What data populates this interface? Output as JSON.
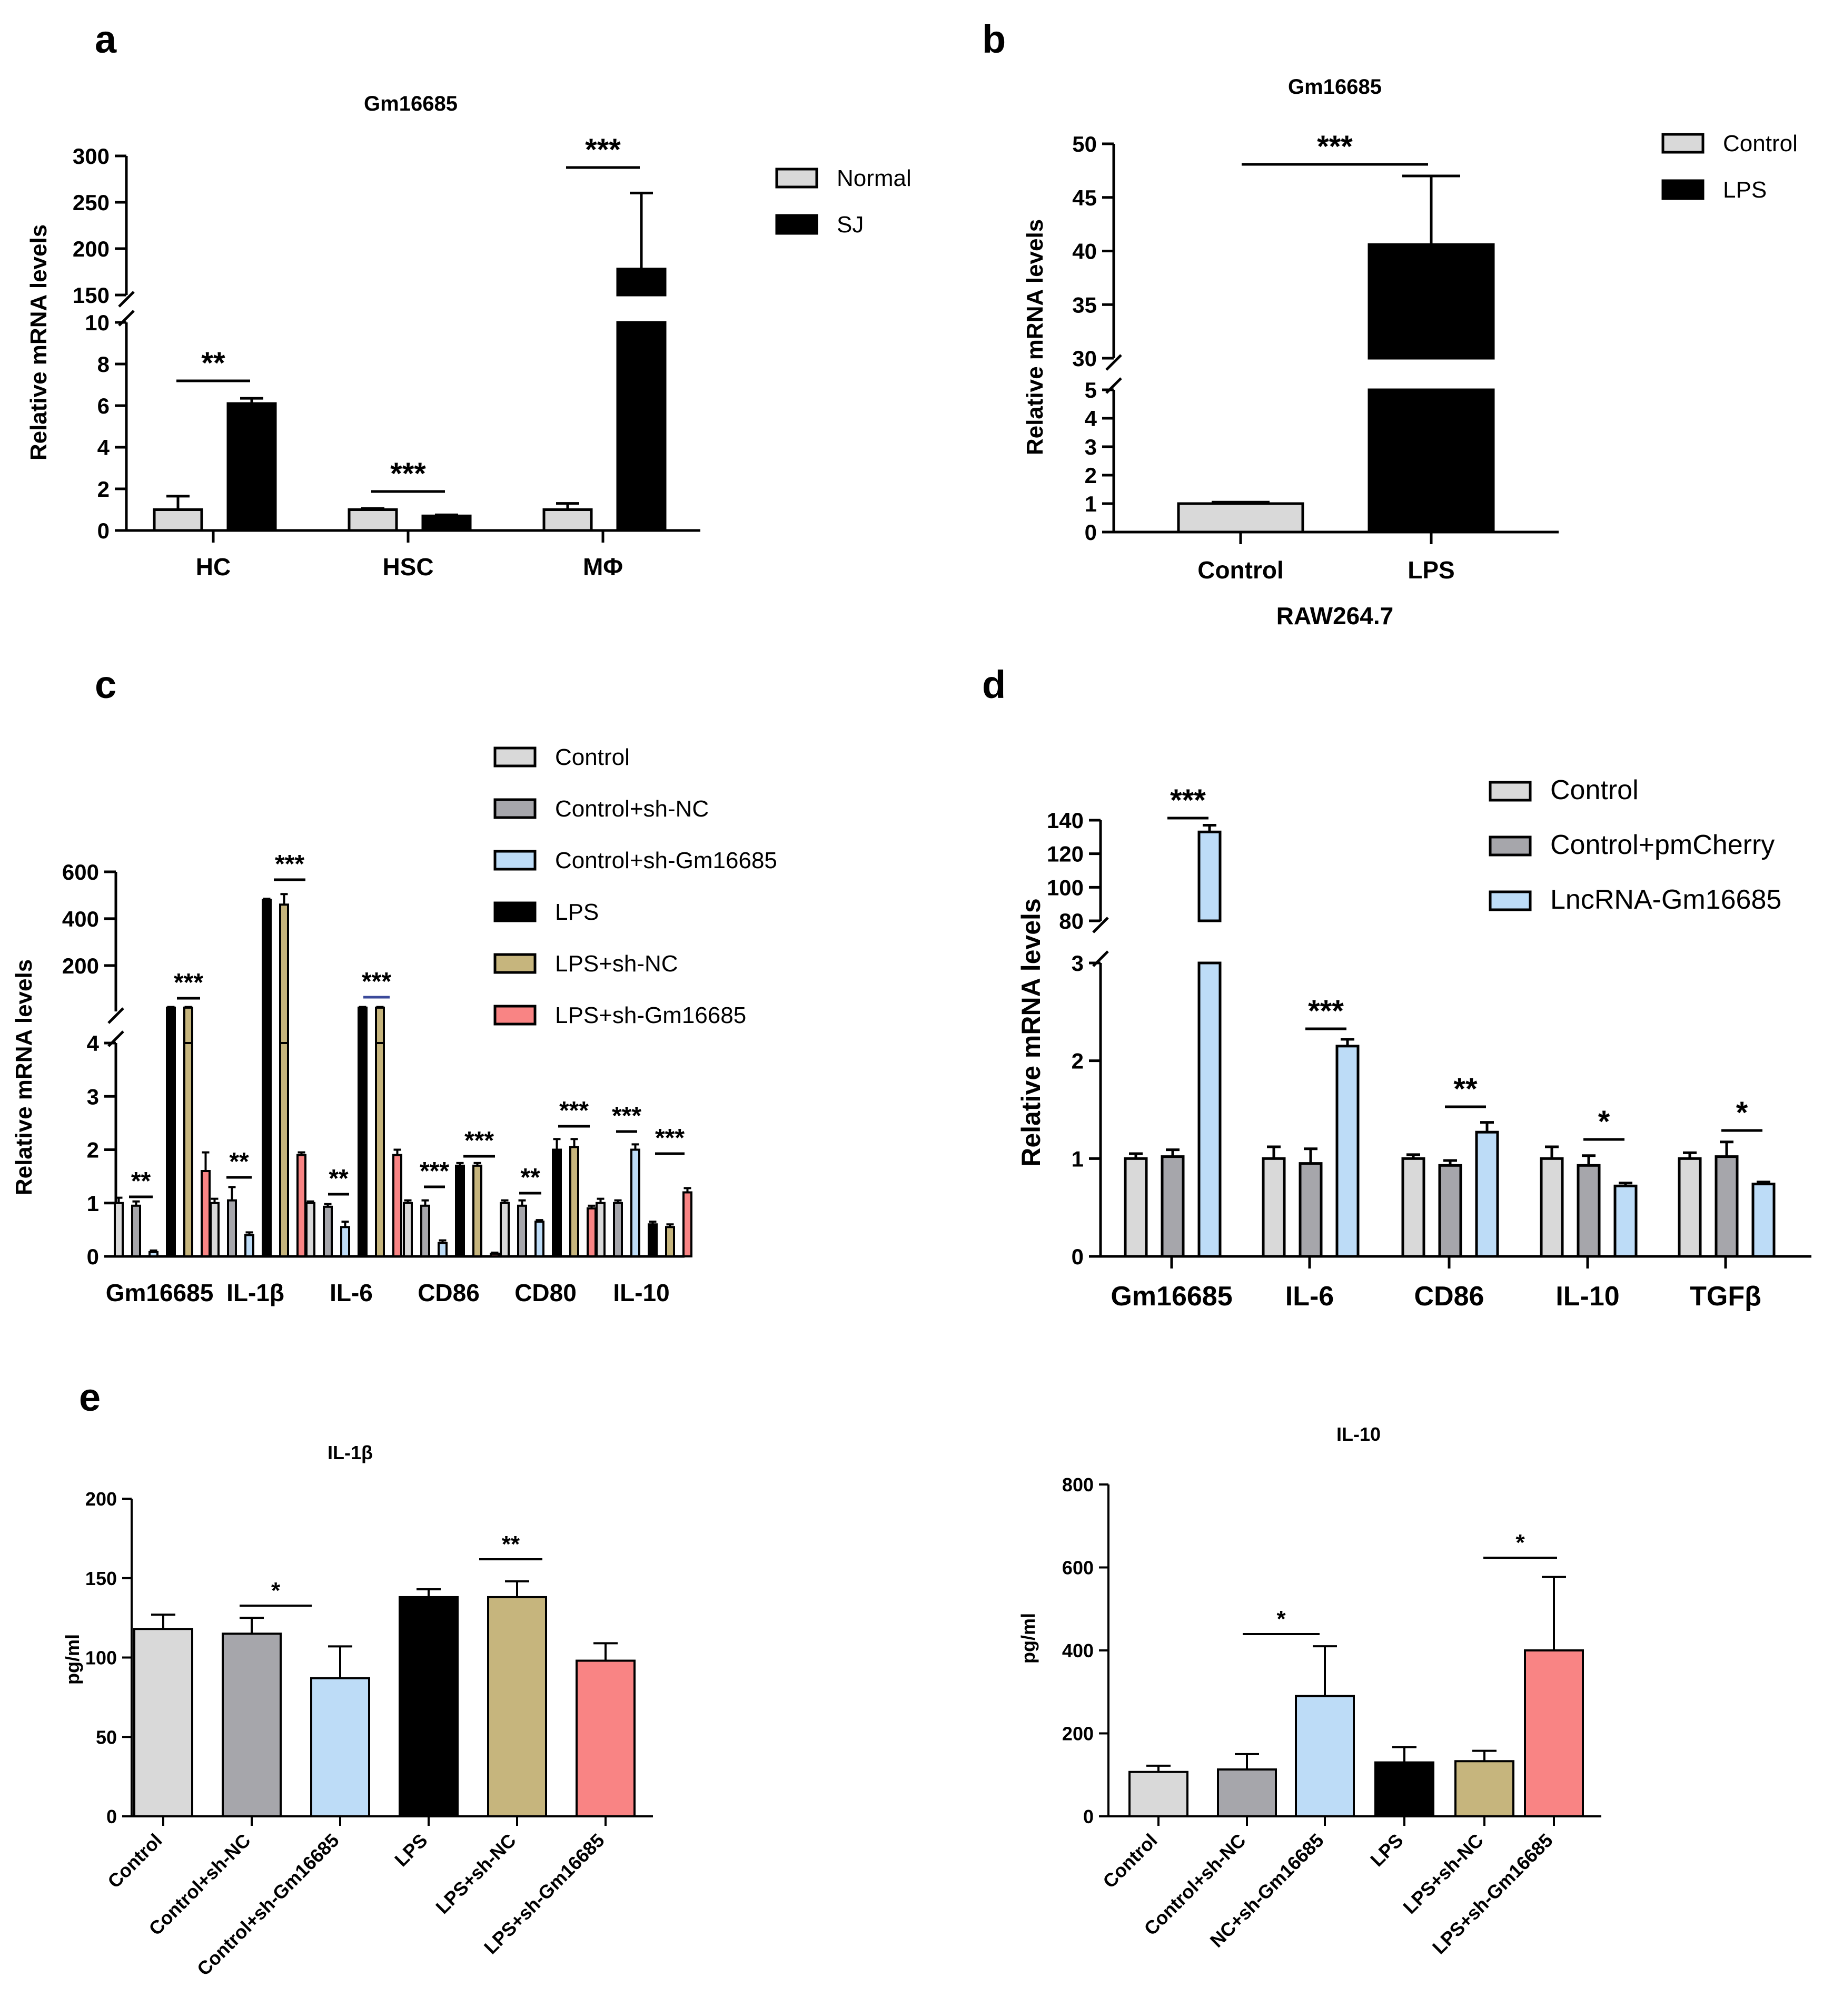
{
  "colors": {
    "Normal": "#d9d9d9",
    "SJ": "#000000",
    "Control": "#d9d9d9",
    "LPS": "#000000",
    "Control+sh-NC": "#a6a6ab",
    "Control+sh-Gm16685": "#bddcf7",
    "LPS+sh-NC": "#c6b57d",
    "LPS+sh-Gm16685": "#f98484",
    "Control+pmCherry": "#a6a6ab",
    "LncRNA-Gm16685": "#bddcf7",
    "NC+sh-Gm16685": "#bddcf7"
  },
  "panels": {
    "a": {
      "label": "a",
      "title": "Gm16685",
      "ylabel": "Relative mRNA levels"
    },
    "b": {
      "label": "b",
      "title": "Gm16685",
      "ylabel": "Relative mRNA levels",
      "xlabel": "RAW264.7"
    },
    "c": {
      "label": "c",
      "ylabel": "Relative mRNA levels"
    },
    "d": {
      "label": "d",
      "ylabel": "Relative mRNA levels"
    },
    "e": {
      "label": "e"
    },
    "e1": {
      "title": "IL-1β",
      "ylabel": "pg/ml"
    },
    "e2": {
      "title": "IL-10",
      "ylabel": "pg/ml"
    }
  },
  "chart_data": [
    {
      "id": "a",
      "type": "bar",
      "title": "Gm16685",
      "ylabel": "Relative mRNA levels",
      "categories": [
        "HC",
        "HSC",
        "MΦ"
      ],
      "series": [
        {
          "name": "Normal",
          "values": [
            1.0,
            1.0,
            1.0
          ],
          "errors": [
            0.65,
            0.05,
            0.3
          ]
        },
        {
          "name": "SJ",
          "values": [
            6.1,
            0.7,
            178
          ],
          "errors": [
            0.25,
            0.05,
            82
          ]
        }
      ],
      "y_segments": [
        {
          "range": [
            0,
            10
          ],
          "ticks": [
            0,
            2,
            4,
            6,
            8,
            10
          ]
        },
        {
          "range": [
            150,
            300
          ],
          "ticks": [
            150,
            200,
            250,
            300
          ]
        }
      ],
      "significance": [
        {
          "category": "HC",
          "label": "**"
        },
        {
          "category": "HSC",
          "label": "***"
        },
        {
          "category": "MΦ",
          "label": "***"
        }
      ]
    },
    {
      "id": "b",
      "type": "bar",
      "title": "Gm16685",
      "ylabel": "Relative mRNA levels",
      "xlabel": "RAW264.7",
      "categories": [
        "Control",
        "LPS"
      ],
      "series": [
        {
          "name": "Relative mRNA",
          "values": [
            1.0,
            40.6
          ],
          "errors": [
            0.05,
            6.4
          ]
        }
      ],
      "legend": [
        "Control",
        "LPS"
      ],
      "y_segments": [
        {
          "range": [
            0,
            5
          ],
          "ticks": [
            0,
            1,
            2,
            3,
            4,
            5
          ]
        },
        {
          "range": [
            30,
            50
          ],
          "ticks": [
            30,
            35,
            40,
            45,
            50
          ]
        }
      ],
      "significance": [
        {
          "between": [
            "Control",
            "LPS"
          ],
          "label": "***"
        }
      ]
    },
    {
      "id": "c",
      "type": "bar",
      "ylabel": "Relative mRNA levels",
      "categories": [
        "Gm16685",
        "IL-1β",
        "IL-6",
        "CD86",
        "CD80",
        "IL-10"
      ],
      "series": [
        {
          "name": "Control",
          "values": [
            1.0,
            1.0,
            1.0,
            1.0,
            1.0,
            1.0
          ],
          "errors": [
            0.1,
            0.08,
            0.03,
            0.05,
            0.05,
            0.08
          ]
        },
        {
          "name": "Control+sh-NC",
          "values": [
            0.95,
            1.05,
            0.93,
            0.95,
            0.95,
            1.0
          ],
          "errors": [
            0.08,
            0.25,
            0.05,
            0.1,
            0.1,
            0.05
          ]
        },
        {
          "name": "Control+sh-Gm16685",
          "values": [
            0.08,
            0.4,
            0.55,
            0.25,
            0.65,
            2.0
          ],
          "errors": [
            0.03,
            0.05,
            0.1,
            0.05,
            0.03,
            0.1
          ]
        },
        {
          "name": "LPS",
          "values": [
            20,
            480,
            20,
            1.7,
            2.0,
            0.6
          ],
          "errors": [
            3,
            5,
            3,
            0.05,
            0.2,
            0.05
          ]
        },
        {
          "name": "LPS+sh-NC",
          "values": [
            20,
            460,
            20,
            1.7,
            2.05,
            0.55
          ],
          "errors": [
            3,
            45,
            3,
            0.05,
            0.15,
            0.05
          ]
        },
        {
          "name": "LPS+sh-Gm16685",
          "values": [
            1.6,
            1.9,
            1.9,
            0.05,
            0.9,
            1.2
          ],
          "errors": [
            0.35,
            0.05,
            0.1,
            0.02,
            0.05,
            0.08
          ]
        }
      ],
      "y_segments": [
        {
          "range": [
            0,
            4
          ],
          "ticks": [
            0,
            1,
            2,
            3,
            4
          ]
        },
        {
          "range": [
            0,
            600
          ],
          "ticks": [
            200,
            400,
            600
          ]
        }
      ],
      "significance_labels": [
        "**",
        "***",
        "**",
        "***",
        "**",
        "***",
        "***",
        "***",
        "**",
        "***",
        "***",
        "***"
      ]
    },
    {
      "id": "d",
      "type": "bar",
      "ylabel": "Relative mRNA levels",
      "categories": [
        "Gm16685",
        "IL-6",
        "CD86",
        "IL-10",
        "TGFβ"
      ],
      "series": [
        {
          "name": "Control",
          "values": [
            1.0,
            1.0,
            1.0,
            1.0,
            1.0
          ],
          "errors": [
            0.05,
            0.12,
            0.04,
            0.12,
            0.06
          ]
        },
        {
          "name": "Control+pmCherry",
          "values": [
            1.02,
            0.95,
            0.93,
            0.93,
            1.02
          ],
          "errors": [
            0.07,
            0.15,
            0.05,
            0.1,
            0.15
          ]
        },
        {
          "name": "LncRNA-Gm16685",
          "values": [
            133,
            2.15,
            1.27,
            0.72,
            0.74
          ],
          "errors": [
            4,
            0.07,
            0.1,
            0.03,
            0.02
          ]
        }
      ],
      "y_segments": [
        {
          "range": [
            0,
            3
          ],
          "ticks": [
            0,
            1,
            2,
            3
          ]
        },
        {
          "range": [
            80,
            140
          ],
          "ticks": [
            80,
            100,
            120,
            140
          ]
        }
      ],
      "significance": [
        {
          "category": "Gm16685",
          "label": "***"
        },
        {
          "category": "IL-6",
          "label": "***"
        },
        {
          "category": "CD86",
          "label": "**"
        },
        {
          "category": "IL-10",
          "label": "*"
        },
        {
          "category": "TGFβ",
          "label": "*"
        }
      ]
    },
    {
      "id": "e1",
      "type": "bar",
      "title": "IL-1β",
      "ylabel": "pg/ml",
      "categories": [
        "Control",
        "Control+sh-NC",
        "Control+sh-Gm16685",
        "LPS",
        "LPS+sh-NC",
        "LPS+sh-Gm16685"
      ],
      "values": [
        118,
        115,
        87,
        138,
        138,
        98
      ],
      "errors": [
        9,
        10,
        20,
        5,
        10,
        11
      ],
      "ylim": [
        0,
        200
      ],
      "yticks": [
        0,
        50,
        100,
        150,
        200
      ],
      "significance": [
        {
          "between": [
            "Control+sh-NC",
            "Control+sh-Gm16685"
          ],
          "label": "*"
        },
        {
          "between": [
            "LPS+sh-NC",
            "LPS+sh-Gm16685"
          ],
          "label": "**"
        }
      ]
    },
    {
      "id": "e2",
      "type": "bar",
      "title": "IL-10",
      "ylabel": "pg/ml",
      "categories": [
        "Control",
        "Control+sh-NC",
        "NC+sh-Gm16685",
        "LPS",
        "LPS+sh-NC",
        "LPS+sh-Gm16685"
      ],
      "values": [
        107,
        113,
        290,
        130,
        133,
        400
      ],
      "errors": [
        15,
        37,
        120,
        37,
        25,
        177
      ],
      "ylim": [
        0,
        800
      ],
      "yticks": [
        0,
        200,
        400,
        600,
        800
      ],
      "significance": [
        {
          "between": [
            "Control+sh-NC",
            "NC+sh-Gm16685"
          ],
          "label": "*"
        },
        {
          "between": [
            "LPS+sh-NC",
            "LPS+sh-Gm16685"
          ],
          "label": "*"
        }
      ]
    }
  ]
}
